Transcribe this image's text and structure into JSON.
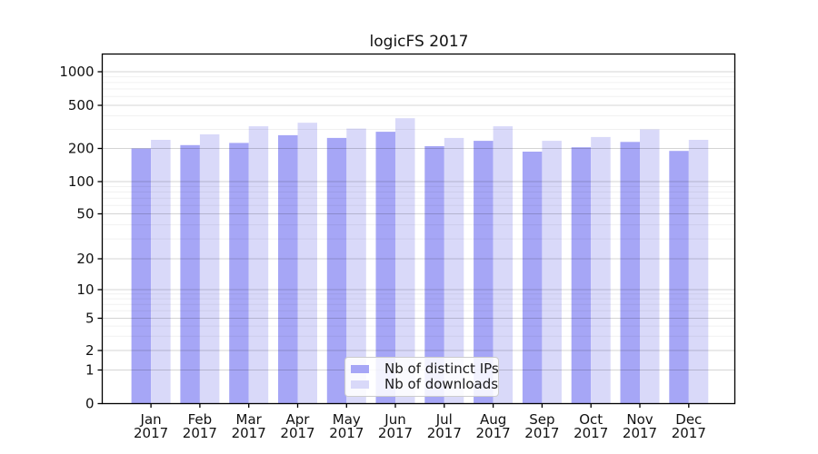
{
  "chart_data": {
    "type": "bar",
    "title": "logicFS 2017",
    "xlabel": "",
    "ylabel": "",
    "x_axis": {
      "categories": [
        "Jan",
        "Feb",
        "Mar",
        "Apr",
        "May",
        "Jun",
        "Jul",
        "Aug",
        "Sep",
        "Oct",
        "Nov",
        "Dec"
      ],
      "year_label": "2017"
    },
    "y_axis": {
      "scale": "log-like (symlog)",
      "ticks": [
        0,
        1,
        2,
        5,
        10,
        20,
        50,
        100,
        200,
        500,
        1000
      ],
      "minor_gridlines": [
        3,
        4,
        6,
        7,
        8,
        9,
        30,
        40,
        60,
        70,
        80,
        90,
        300,
        400,
        600,
        700,
        800,
        900
      ],
      "ylim": [
        0,
        1400
      ]
    },
    "grid": "major and minor horizontal gridlines, light gray, drawn over bars",
    "series": [
      {
        "name": "Nb of distinct IPs",
        "color": "#a6a6f6",
        "values": [
          200,
          215,
          225,
          265,
          250,
          285,
          210,
          235,
          187,
          205,
          230,
          190
        ]
      },
      {
        "name": "Nb of downloads",
        "color": "#d9d9f9",
        "values": [
          240,
          270,
          320,
          345,
          305,
          380,
          250,
          320,
          235,
          255,
          300,
          240
        ]
      }
    ],
    "legend": {
      "position": "lower center inside plot",
      "items": [
        "Nb of distinct IPs",
        "Nb of downloads"
      ]
    },
    "colors": {
      "background": "#ffffff",
      "spine": "#000000",
      "grid_major": "rgba(0,0,0,0.17)",
      "grid_minor": "rgba(0,0,0,0.06)",
      "text": "#111111"
    }
  }
}
